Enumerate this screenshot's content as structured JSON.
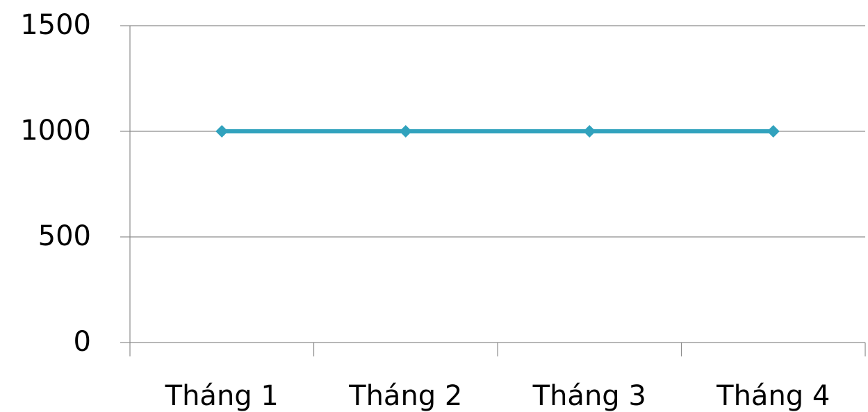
{
  "chart_data": {
    "type": "line",
    "title": "",
    "xlabel": "",
    "ylabel": "",
    "categories": [
      "Tháng 1",
      "Tháng 2",
      "Tháng 3",
      "Tháng 4"
    ],
    "series": [
      {
        "values": [
          1000,
          1000,
          1000,
          1000
        ],
        "color": "#31a2bd",
        "marker": "diamond"
      }
    ],
    "ylim": [
      0,
      1500
    ],
    "yticks": [
      0,
      500,
      1000,
      1500
    ],
    "ytick_labels": [
      "0",
      "500",
      "1000",
      "1500"
    ],
    "grid": true,
    "legend": "none",
    "colors": {
      "grid": "#8c8c8c",
      "axis": "#8c8c8c"
    }
  }
}
